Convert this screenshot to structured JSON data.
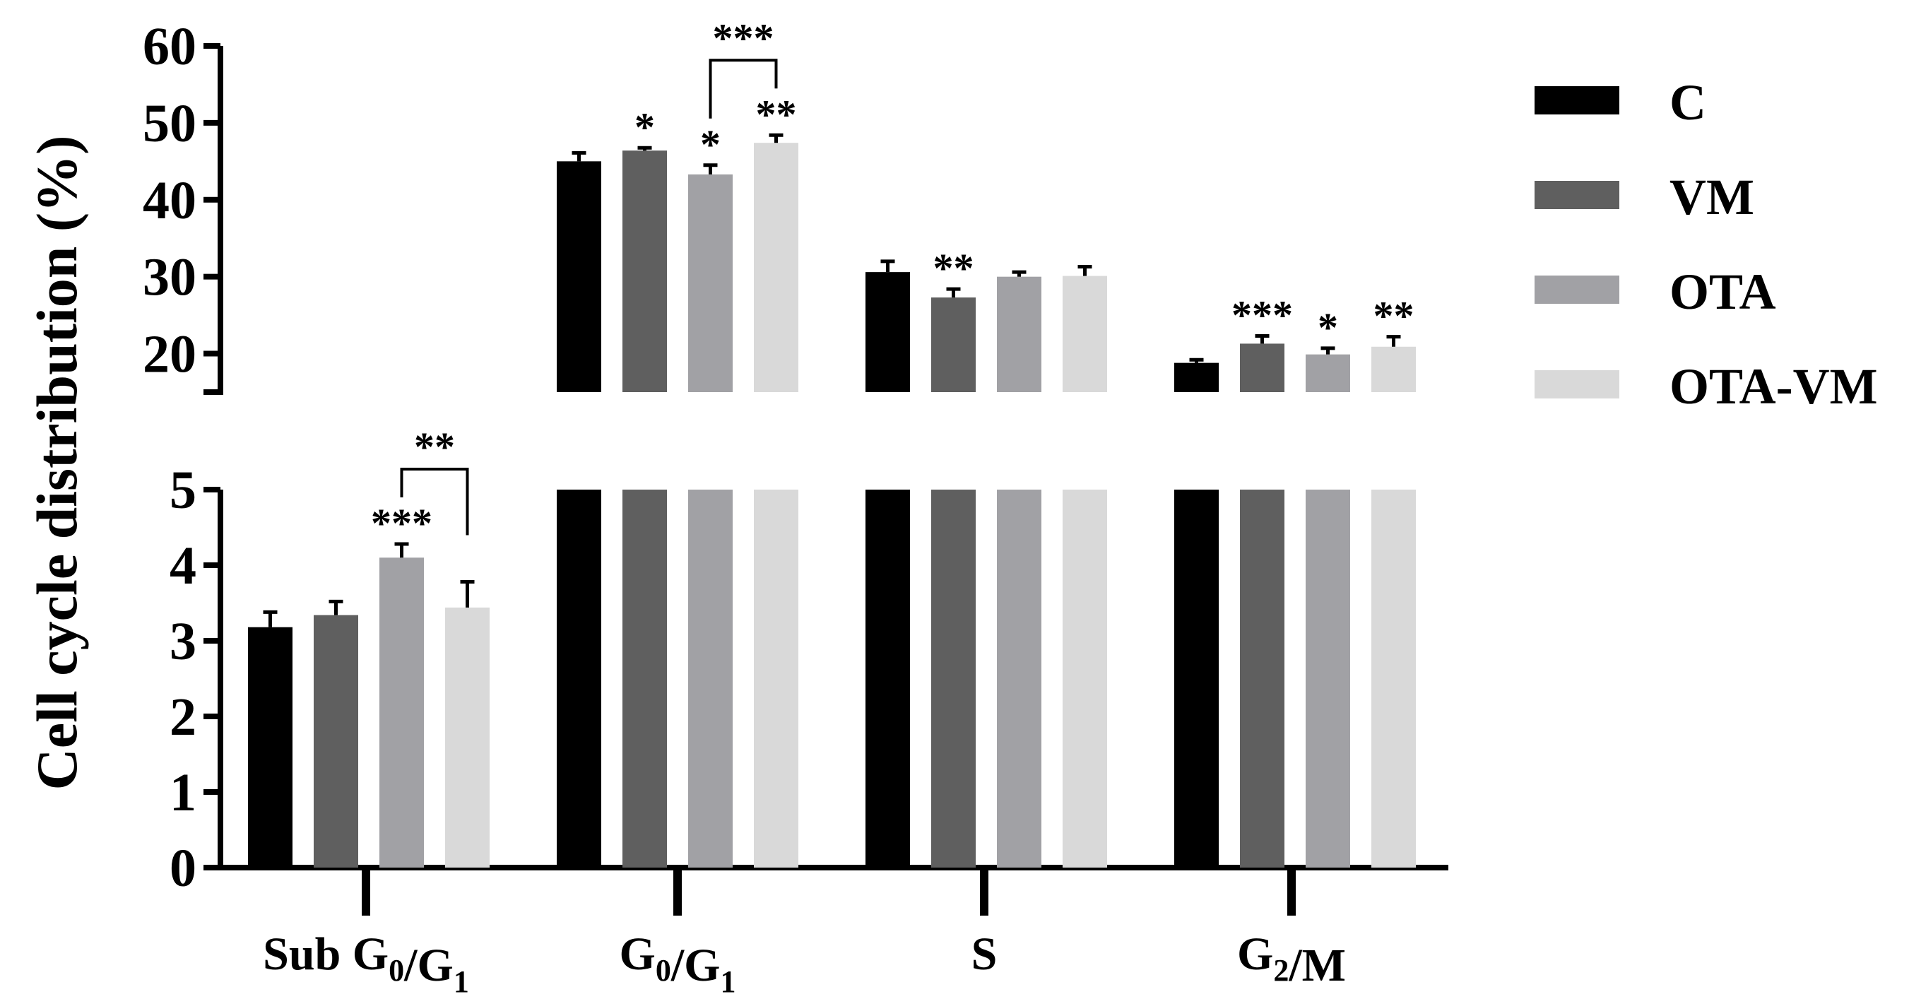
{
  "chart_data": {
    "type": "bar",
    "ylabel": "Cell cycle distribution (%)",
    "categories": [
      {
        "prefix": "Sub G",
        "sub1": "0",
        "mid": "/G",
        "sub2": "1",
        "suffix": ""
      },
      {
        "prefix": "G",
        "sub1": "0",
        "mid": "/G",
        "sub2": "1",
        "suffix": ""
      },
      {
        "prefix": "S",
        "sub1": "",
        "mid": "",
        "sub2": "",
        "suffix": ""
      },
      {
        "prefix": "G",
        "sub1": "2",
        "mid": "/M",
        "sub2": "",
        "suffix": ""
      }
    ],
    "series": [
      {
        "name": "C",
        "color": "#000000",
        "values": [
          3.18,
          45.0,
          30.6,
          18.8
        ],
        "errors": [
          0.2,
          1.1,
          1.4,
          0.4
        ],
        "stars": [
          "",
          "",
          "",
          ""
        ]
      },
      {
        "name": "VM",
        "color": "#5f5f5f",
        "values": [
          3.34,
          46.4,
          27.3,
          21.3
        ],
        "errors": [
          0.18,
          0.35,
          1.1,
          1.0
        ],
        "stars": [
          "",
          "*",
          "**",
          "***"
        ]
      },
      {
        "name": "OTA",
        "color": "#a1a1a5",
        "values": [
          4.1,
          43.3,
          30.0,
          19.9
        ],
        "errors": [
          0.18,
          1.2,
          0.6,
          0.8
        ],
        "stars": [
          "***",
          "*",
          "",
          "*"
        ]
      },
      {
        "name": "OTA-VM",
        "color": "#d9d9d9",
        "values": [
          3.44,
          47.4,
          30.1,
          20.9
        ],
        "errors": [
          0.34,
          1.0,
          1.2,
          1.3
        ],
        "stars": [
          "",
          "**",
          "",
          "**"
        ]
      }
    ],
    "lower_axis": {
      "ylim": [
        0,
        5
      ],
      "ticks": [
        "0",
        "1",
        "2",
        "3",
        "4",
        "5"
      ]
    },
    "upper_axis": {
      "ylim": [
        15,
        60
      ],
      "ticks": [
        "20",
        "30",
        "40",
        "50",
        "60"
      ]
    },
    "comparisons": [
      {
        "category": 0,
        "from": "OTA",
        "to": "OTA-VM",
        "label": "**"
      },
      {
        "category": 1,
        "from": "OTA",
        "to": "OTA-VM",
        "label": "***"
      }
    ],
    "legend": {
      "position": "right",
      "entries": [
        "C",
        "VM",
        "OTA",
        "OTA-VM"
      ]
    }
  }
}
